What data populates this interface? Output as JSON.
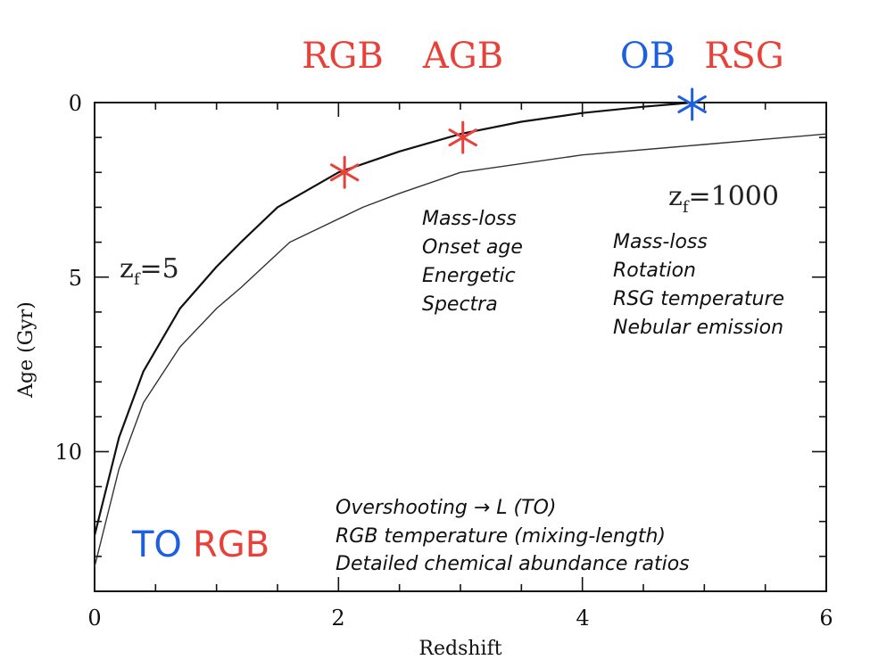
{
  "chart_data": {
    "type": "line",
    "title": "",
    "xlabel": "Redshift",
    "ylabel": "Age (Gyr)",
    "xlim": [
      0,
      6
    ],
    "ylim": [
      0,
      14
    ],
    "y_inverted": true,
    "grid": false,
    "x_ticks": [
      0,
      2,
      4,
      6
    ],
    "x_tick_labels": [
      "0",
      "2",
      "4",
      "6"
    ],
    "y_ticks": [
      0,
      5,
      10
    ],
    "y_tick_labels": [
      "0",
      "5",
      "10"
    ],
    "series": [
      {
        "name": "zf=5",
        "color": "#111111",
        "x": [
          0,
          0.2,
          0.4,
          0.7,
          1.0,
          1.2,
          1.5,
          2.0,
          2.5,
          3.0,
          3.5,
          4.0,
          4.5,
          4.9
        ],
        "y": [
          12.4,
          9.6,
          7.7,
          5.9,
          4.7,
          4.0,
          3.0,
          2.0,
          1.4,
          0.9,
          0.55,
          0.3,
          0.12,
          0.0
        ]
      },
      {
        "name": "zf=1000",
        "color": "#333333",
        "x": [
          0,
          0.2,
          0.4,
          0.7,
          1.0,
          1.2,
          1.6,
          2.2,
          2.5,
          3.0,
          4.0,
          5.0,
          6.0
        ],
        "y": [
          13.3,
          10.5,
          8.6,
          7.0,
          5.9,
          5.3,
          4.0,
          3.0,
          2.6,
          2.0,
          1.5,
          1.2,
          0.9
        ]
      }
    ],
    "markers": [
      {
        "label": "RGB onset",
        "x": 2.05,
        "y": 2.0,
        "color": "#e8413a"
      },
      {
        "label": "AGB onset",
        "x": 3.02,
        "y": 1.0,
        "color": "#e8413a"
      },
      {
        "label": "OB/RSG",
        "x": 4.9,
        "y": 0.05,
        "color": "#1c5fe0"
      }
    ],
    "curve_labels": [
      {
        "main": "z",
        "sub": "f",
        "value": "=5"
      },
      {
        "main": "z",
        "sub": "f",
        "value": "=1000"
      }
    ],
    "top_labels": [
      {
        "text": "RGB",
        "color": "#e8413a"
      },
      {
        "text": "AGB",
        "color": "#e8413a"
      },
      {
        "text": "OB",
        "color": "#1c5fe0"
      },
      {
        "text": "RSG",
        "color": "#e8413a"
      }
    ],
    "annotations": {
      "agb_notes": [
        "Mass-loss",
        "Onset age",
        "Energetic",
        "Spectra"
      ],
      "rsg_notes": [
        "Mass-loss",
        "Rotation",
        "RSG temperature",
        "Nebular emission"
      ],
      "rgb_notes": [
        "Overshooting → L (TO)",
        "RGB temperature (mixing-length)",
        "Detailed chemical abundance ratios"
      ],
      "corner": [
        {
          "text": "TO",
          "color": "#1c5fe0"
        },
        {
          "text": "RGB",
          "color": "#e8413a"
        }
      ]
    }
  }
}
